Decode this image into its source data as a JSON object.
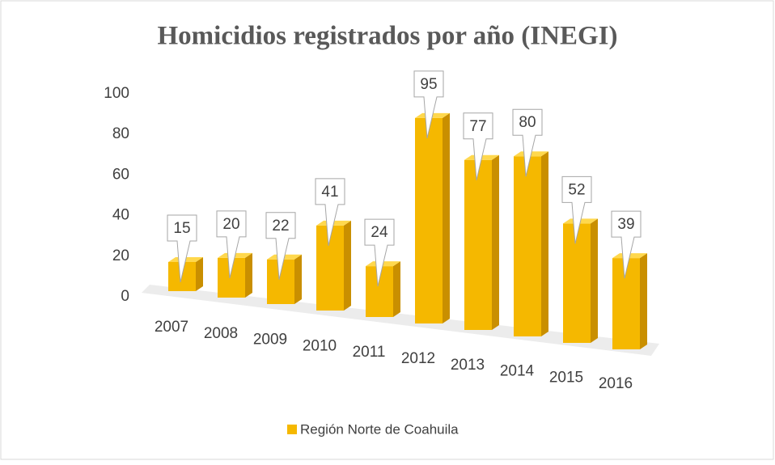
{
  "chart_data": {
    "type": "bar",
    "title": "Homicidios registrados por año (INEGI)",
    "categories": [
      "2007",
      "2008",
      "2009",
      "2010",
      "2011",
      "2012",
      "2013",
      "2014",
      "2015",
      "2016"
    ],
    "series": [
      {
        "name": "Región Norte de Coahuila",
        "color": "#f5b800",
        "values": [
          15,
          20,
          22,
          41,
          24,
          95,
          77,
          80,
          52,
          39
        ]
      }
    ],
    "ylim": [
      0,
      100
    ],
    "yticks": [
      0,
      20,
      40,
      60,
      80,
      100
    ],
    "legend": "bottom"
  }
}
